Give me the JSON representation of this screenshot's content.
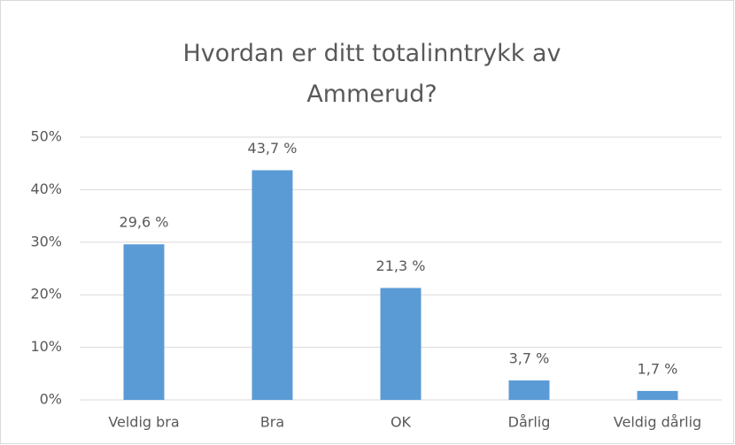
{
  "chart_data": {
    "type": "bar",
    "title": "Hvordan er ditt totalinntrykk av Ammerud?",
    "categories": [
      "Veldig bra",
      "Bra",
      "OK",
      "Dårlig",
      "Veldig dårlig"
    ],
    "values": [
      29.6,
      43.7,
      21.3,
      3.7,
      1.7
    ],
    "value_labels": [
      "29,6 %",
      "43,7 %",
      "21,3 %",
      "3,7 %",
      "1,7 %"
    ],
    "color": "#5b9bd5",
    "ylim": [
      0,
      50
    ],
    "yticks": [
      {
        "value": 0,
        "label": "0%"
      },
      {
        "value": 10,
        "label": "10%"
      },
      {
        "value": 20,
        "label": "20%"
      },
      {
        "value": 30,
        "label": "30%"
      },
      {
        "value": 40,
        "label": "40%"
      },
      {
        "value": 50,
        "label": "50%"
      }
    ],
    "grid": true
  }
}
